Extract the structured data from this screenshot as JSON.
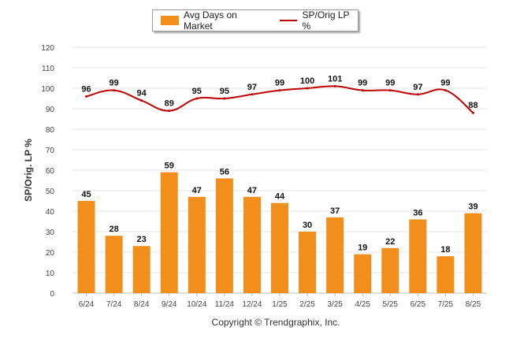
{
  "chart_data": {
    "type": "bar",
    "categories": [
      "6/24",
      "7/24",
      "8/24",
      "9/24",
      "10/24",
      "11/24",
      "12/24",
      "1/25",
      "2/25",
      "3/25",
      "4/25",
      "5/25",
      "6/25",
      "7/25",
      "8/25"
    ],
    "series": [
      {
        "name": "Avg Days on Market",
        "type": "bar",
        "color": "#f28f1c",
        "values": [
          45,
          28,
          23,
          59,
          47,
          56,
          47,
          44,
          30,
          37,
          19,
          22,
          36,
          18,
          39
        ]
      },
      {
        "name": "SP/Orig LP %",
        "type": "line",
        "color": "#c00000",
        "values": [
          96,
          99,
          94,
          89,
          95,
          95,
          97,
          99,
          100,
          101,
          99,
          99,
          97,
          99,
          88
        ]
      }
    ],
    "ylabel": "SP/Orig. LP %",
    "ylim": [
      0,
      120
    ],
    "yticks": [
      0,
      10,
      20,
      30,
      40,
      50,
      60,
      70,
      80,
      90,
      100,
      110,
      120
    ],
    "grid": true,
    "legend_position": "top-center"
  },
  "footer": "Copyright © Trendgraphix, Inc."
}
